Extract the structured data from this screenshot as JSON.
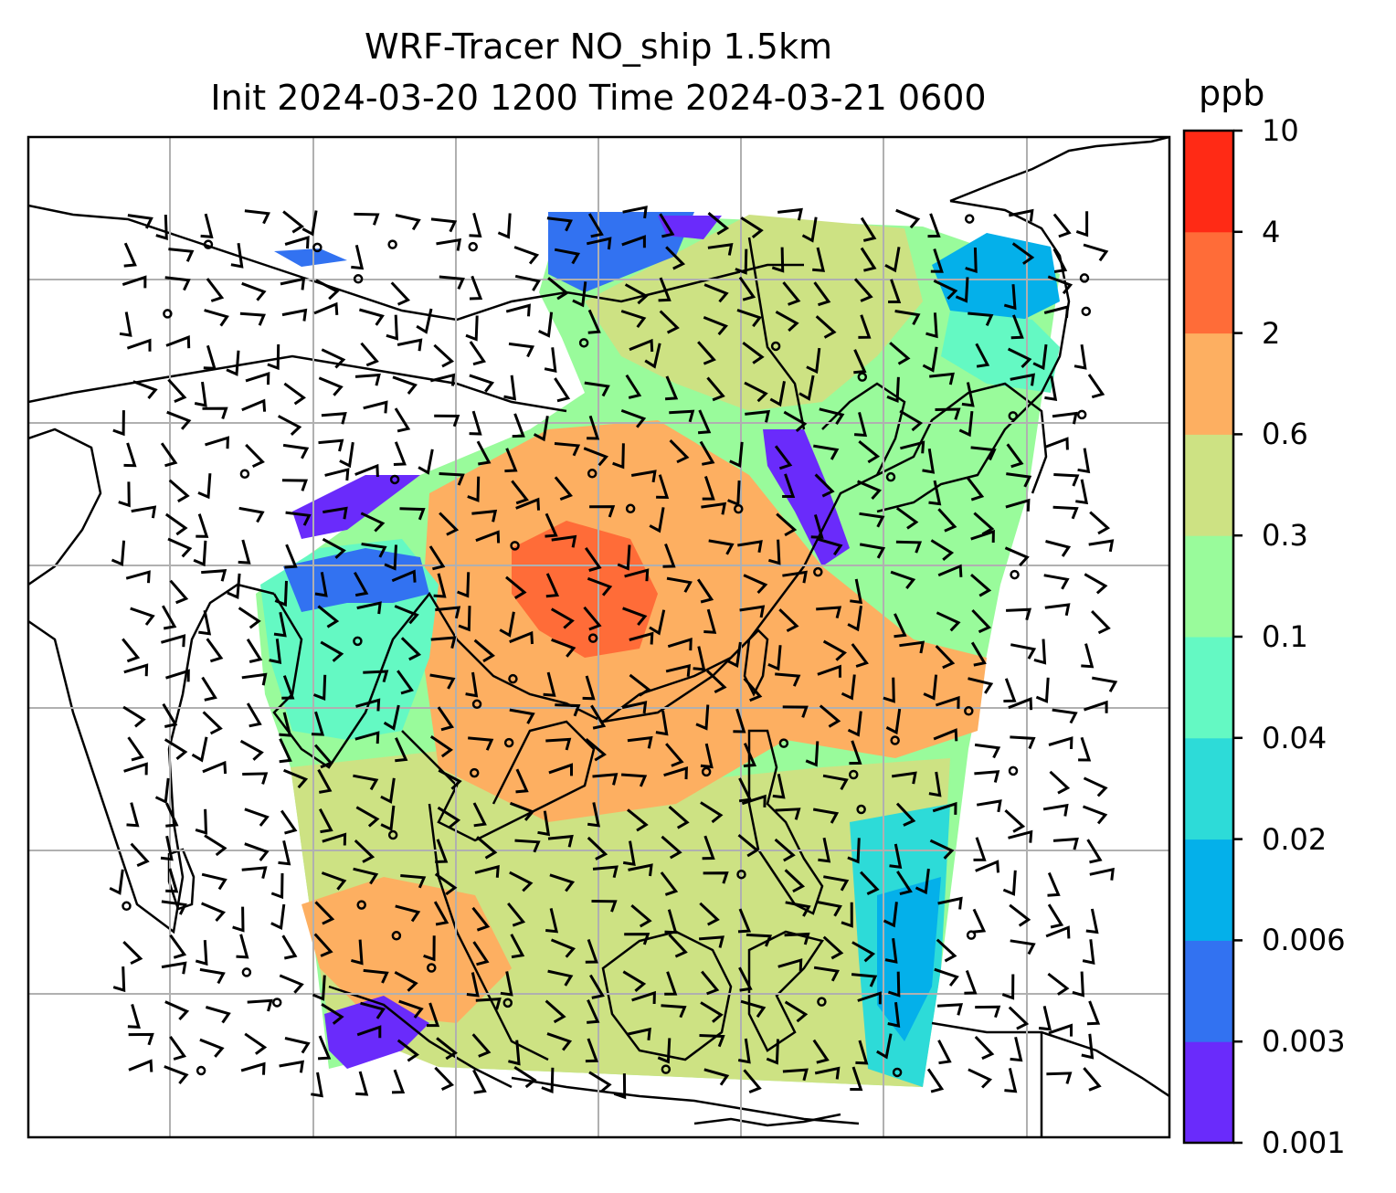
{
  "title": {
    "line1": "WRF-Tracer NO_ship 1.5km",
    "line2": "Init 2024-03-20 1200 Time 2024-03-21 0600"
  },
  "colorbar": {
    "unit": "ppb",
    "levels": [
      "0.001",
      "0.003",
      "0.006",
      "0.02",
      "0.04",
      "0.1",
      "0.3",
      "0.6",
      "2",
      "4",
      "10"
    ],
    "colors": [
      "#6a2bfb",
      "#3272f1",
      "#04b0ea",
      "#2ddbd8",
      "#64f9c3",
      "#99fb9b",
      "#cde283",
      "#fdaf61",
      "#ff6c38",
      "#ff2a15"
    ]
  },
  "map": {
    "background": "#ffffff",
    "gridline_color": "#b0b0b0",
    "coastline_color": "#000000",
    "overlay": "wind barbs"
  }
}
